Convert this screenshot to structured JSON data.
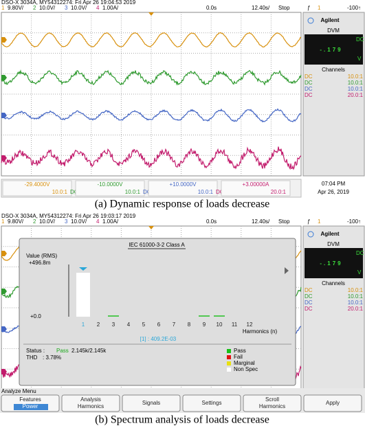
{
  "panels": [
    {
      "header": "DSO-X 3034A, MY54312274: Fri Apr 26 19:04:53 2019",
      "channels": [
        {
          "number": "1",
          "scale": "9.80V/"
        },
        {
          "number": "2",
          "scale": "10.0V/"
        },
        {
          "number": "3",
          "scale": "10.0V/"
        },
        {
          "number": "4",
          "scale": "1.00A/"
        }
      ],
      "time_offset": "0.0s",
      "time_scale": "12.40s/",
      "run_state": "Stop",
      "trigger": {
        "symbol": "ƒ",
        "channel": "1",
        "level": "-100↑"
      },
      "side_panel": {
        "brand": "Agilent",
        "dvm_label": "DVM",
        "dvm_reading": "-.179",
        "dvm_coupling": "DC",
        "dvm_unit": "V",
        "channels_label": "Channels",
        "channel_rows": [
          {
            "coupling": "DC",
            "probe": "10.0:1"
          },
          {
            "coupling": "DC",
            "probe": "10.0:1"
          },
          {
            "coupling": "DC",
            "probe": "10.0:1"
          },
          {
            "coupling": "DC",
            "probe": "20.0:1"
          }
        ]
      },
      "offsets": [
        {
          "offset": "-29.4000V",
          "probe": "10.0:1",
          "coupling": "DC"
        },
        {
          "offset": "-10.0000V",
          "probe": "10.0:1",
          "coupling": "DC"
        },
        {
          "offset": "+10.0000V",
          "probe": "10.0:1",
          "coupling": "DC"
        },
        {
          "offset": "+3.00000A",
          "probe": "20.0:1"
        }
      ],
      "clock": {
        "time": "07:04 PM",
        "date": "Apr 26, 2019"
      },
      "caption": "(a) Dynamic response of loads decrease"
    },
    {
      "header": "DSO-X 3034A, MY54312274: Fri Apr 26 19:03:17 2019",
      "channels": [
        {
          "number": "1",
          "scale": "9.80V/"
        },
        {
          "number": "2",
          "scale": "10.0V/"
        },
        {
          "number": "3",
          "scale": "10.0V/"
        },
        {
          "number": "4",
          "scale": "1.00A/"
        }
      ],
      "time_offset": "0.0s",
      "time_scale": "12.40s/",
      "run_state": "Stop",
      "trigger": {
        "symbol": "ƒ",
        "channel": "1",
        "level": "-100↑"
      },
      "side_panel": {
        "brand": "Agilent",
        "dvm_label": "DVM",
        "dvm_reading": "-.179",
        "dvm_coupling": "DC",
        "dvm_unit": "V",
        "channels_label": "Channels",
        "channel_rows": [
          {
            "coupling": "DC",
            "probe": "10.0:1"
          },
          {
            "coupling": "DC",
            "probe": "10.0:1"
          },
          {
            "coupling": "DC",
            "probe": "10.0:1"
          },
          {
            "coupling": "DC",
            "probe": "20.0:1"
          }
        ]
      },
      "dialog": {
        "title": "IEC 61000-3-2 Class A",
        "axis_label": "Value (RMS)",
        "axis_max": "+496.8m",
        "axis_min": "+0.0",
        "harmonics": [
          "1",
          "2",
          "3",
          "4",
          "5",
          "6",
          "7",
          "8",
          "9",
          "10",
          "11",
          "12"
        ],
        "x_label": "Harmonics (n)",
        "cursor": "[1] : 409.2E-03",
        "status_label": "Status :",
        "status_value": "Pass",
        "status_count": "2.145k/2.145k",
        "thd_label": "THD",
        "thd_value": ": 3.78%",
        "legend": [
          "Pass",
          "Fail",
          "Marginal",
          "Non Spec"
        ]
      },
      "menu_title": "Analyze Menu",
      "softkeys": [
        [
          "Features",
          "Power"
        ],
        [
          "Analysis",
          "Harmonics"
        ],
        [
          "Signals"
        ],
        [
          "Settings"
        ],
        [
          "Scroll",
          "Harmonics"
        ],
        [
          "Apply"
        ]
      ],
      "caption": "(b) Spectrum analysis of loads decrease"
    }
  ]
}
